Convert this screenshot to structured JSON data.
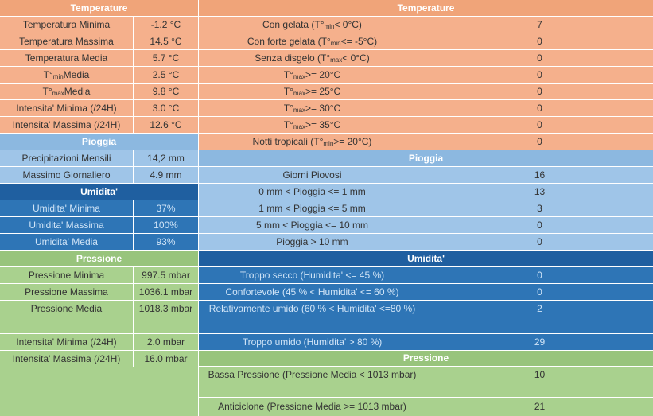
{
  "left": {
    "temperature": {
      "header": "Temperature",
      "rows": [
        {
          "label": "Temperatura Minima",
          "value": "-1.2 °C"
        },
        {
          "label": "Temperatura Massima",
          "value": "14.5 °C"
        },
        {
          "label": "Temperatura Media",
          "value": "5.7 °C"
        },
        {
          "label_pre": "T°",
          "label_sub": "min",
          "label_post": " Media",
          "value": "2.5 °C"
        },
        {
          "label_pre": "T°",
          "label_sub": "max",
          "label_post": " Media",
          "value": "9.8 °C"
        },
        {
          "label": "Intensita' Minima (/24H)",
          "value": "3.0 °C"
        },
        {
          "label": "Intensita' Massima (/24H)",
          "value": "12.6 °C"
        }
      ]
    },
    "pioggia": {
      "header": "Pioggia",
      "rows": [
        {
          "label": "Precipitazioni Mensili",
          "value": "14,2 mm"
        },
        {
          "label": "Massimo Giornaliero",
          "value": "4.9 mm"
        }
      ]
    },
    "umidita": {
      "header": "Umidita'",
      "rows": [
        {
          "label": "Umidita' Minima",
          "value": "37%"
        },
        {
          "label": "Umidita' Massima",
          "value": "100%"
        },
        {
          "label": "Umidita' Media",
          "value": "93%"
        }
      ]
    },
    "pressione": {
      "header": "Pressione",
      "rows": [
        {
          "label": "Pressione Minima",
          "value": "997.5 mbar"
        },
        {
          "label": "Pressione Massima",
          "value": "1036.1 mbar"
        },
        {
          "label": "Pressione Media",
          "value": "1018.3 mbar"
        },
        {
          "label": "Intensita' Minima (/24H)",
          "value": "2.0 mbar"
        },
        {
          "label": "Intensita' Massima (/24H)",
          "value": "16.0 mbar"
        }
      ]
    }
  },
  "right": {
    "temperature": {
      "header": "Temperature",
      "rows": [
        {
          "pre": "Con gelata (T°",
          "sub": "min",
          "post": " < 0°C)",
          "value": "7"
        },
        {
          "pre": "Con forte gelata (T°",
          "sub": "min",
          "post": " <= -5°C)",
          "value": "0"
        },
        {
          "pre": "Senza disgelo (T°",
          "sub": "max",
          "post": " < 0°C)",
          "value": "0"
        },
        {
          "pre": "T°",
          "sub": "max",
          "post": " >= 20°C",
          "value": "0"
        },
        {
          "pre": "T°",
          "sub": "max",
          "post": " >= 25°C",
          "value": "0"
        },
        {
          "pre": "T°",
          "sub": "max",
          "post": " >= 30°C",
          "value": "0"
        },
        {
          "pre": "T°",
          "sub": "max",
          "post": " >= 35°C",
          "value": "0"
        },
        {
          "pre": "Notti tropicali (T°",
          "sub": "min",
          "post": " >= 20°C)",
          "value": "0"
        }
      ]
    },
    "pioggia": {
      "header": "Pioggia",
      "rows": [
        {
          "label": "Giorni Piovosi",
          "value": "16"
        },
        {
          "label": "0 mm < Pioggia <= 1 mm",
          "value": "13"
        },
        {
          "label": "1 mm < Pioggia <= 5 mm",
          "value": "3"
        },
        {
          "label": "5 mm < Pioggia <= 10 mm",
          "value": "0"
        },
        {
          "label": "Pioggia > 10 mm",
          "value": "0"
        }
      ]
    },
    "umidita": {
      "header": "Umidita'",
      "rows": [
        {
          "label": "Troppo secco (Humidita' <= 45 %)",
          "value": "0"
        },
        {
          "label": "Confortevole (45 % < Humidita' <= 60 %)",
          "value": "0"
        },
        {
          "label": "Relativamente umido (60 % < Humidita' <=80 %)",
          "value": "2"
        },
        {
          "label": "Troppo umido (Humidita' > 80 %)",
          "value": "29"
        }
      ]
    },
    "pressione": {
      "header": "Pressione",
      "rows": [
        {
          "label": "Bassa Pressione (Pressione Media < 1013 mbar)",
          "value": "10"
        },
        {
          "label": "Anticiclone (Pressione Media >= 1013 mbar)",
          "value": "21"
        }
      ]
    }
  }
}
